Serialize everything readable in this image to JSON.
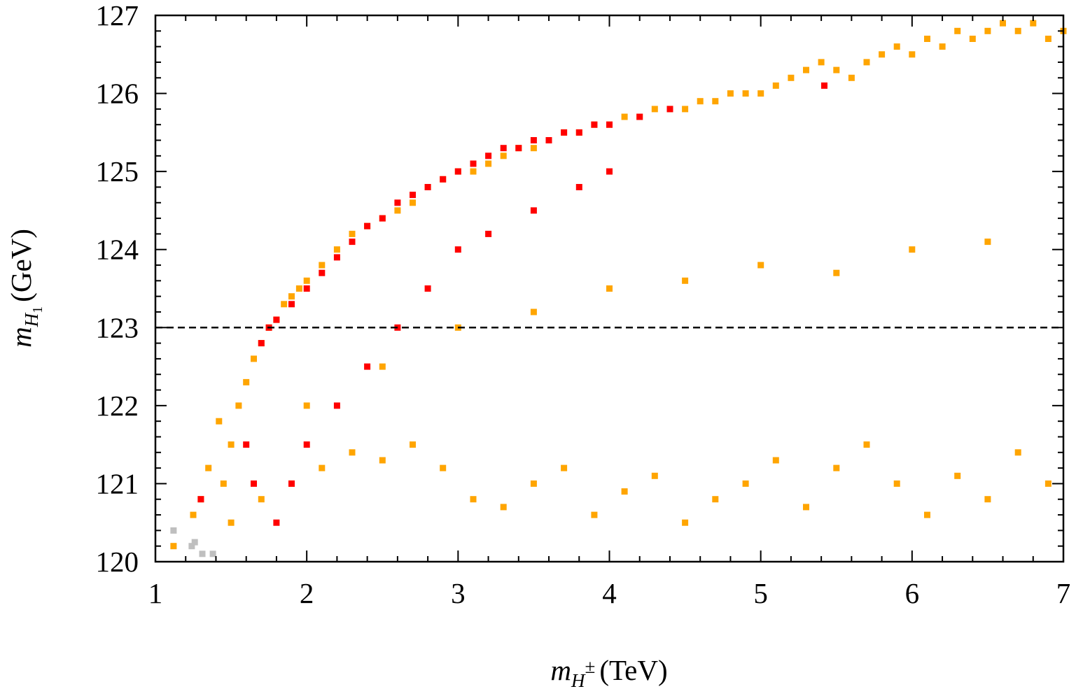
{
  "chart_data": {
    "type": "scatter",
    "xlabel": {
      "symbol": "m",
      "sub": "H",
      "sup": "±",
      "unit": "(TeV)"
    },
    "ylabel": {
      "symbol": "m",
      "sub": "H",
      "subsub": "1",
      "unit": "(GeV)"
    },
    "xlim": [
      1,
      7
    ],
    "ylim": [
      120,
      127
    ],
    "xticks": [
      "1",
      "2",
      "3",
      "4",
      "5",
      "6",
      "7"
    ],
    "yticks": [
      "120",
      "121",
      "122",
      "123",
      "124",
      "125",
      "126",
      "127"
    ],
    "reference_line": {
      "y": 123,
      "style": "dashed",
      "color": "#000000"
    },
    "grid": false,
    "legend": "none",
    "series": [
      {
        "color": "#bfbfbf",
        "x": [
          1.12,
          1.24,
          1.26,
          1.31,
          1.38
        ],
        "y": [
          120.4,
          120.2,
          120.25,
          120.1,
          120.1
        ]
      },
      {
        "color": "#ffa500",
        "x": [
          1.12,
          1.25,
          1.3,
          1.35,
          1.42,
          1.45,
          1.5,
          1.55,
          1.6,
          1.65,
          1.7,
          1.75,
          1.8,
          1.85,
          1.9,
          1.95,
          2.0,
          2.1,
          2.2,
          2.3,
          2.4,
          2.5,
          2.6,
          2.7,
          2.8,
          2.9,
          3.0,
          3.1,
          3.2,
          3.3,
          3.4,
          3.5,
          3.6,
          3.7,
          3.8,
          3.9,
          4.0,
          4.1,
          4.2,
          4.3,
          4.4,
          4.5,
          4.6,
          4.7,
          4.8,
          4.9,
          5.0,
          5.1,
          5.2,
          5.3,
          5.4,
          5.5,
          5.6,
          5.7,
          5.8,
          5.9,
          6.0,
          6.1,
          6.2,
          6.3,
          6.4,
          6.5,
          6.6,
          6.7,
          6.8,
          6.9,
          7.0,
          1.5,
          1.7,
          1.9,
          2.1,
          2.3,
          2.5,
          2.7,
          2.9,
          3.1,
          3.3,
          3.5,
          3.7,
          3.9,
          4.1,
          4.3,
          4.5,
          4.7,
          4.9,
          5.1,
          5.3,
          5.5,
          5.7,
          5.9,
          6.1,
          6.3,
          6.5,
          6.7,
          6.9,
          2.0,
          2.5,
          3.0,
          3.5,
          4.0,
          4.5,
          5.0,
          5.5,
          6.0,
          6.5
        ],
        "y": [
          120.2,
          120.6,
          120.8,
          121.2,
          121.8,
          121.0,
          121.5,
          122.0,
          122.3,
          122.6,
          122.8,
          123.0,
          123.1,
          123.3,
          123.4,
          123.5,
          123.6,
          123.8,
          124.0,
          124.2,
          124.3,
          124.4,
          124.5,
          124.6,
          124.8,
          124.9,
          125.0,
          125.0,
          125.1,
          125.2,
          125.3,
          125.3,
          125.4,
          125.5,
          125.5,
          125.6,
          125.6,
          125.7,
          125.7,
          125.8,
          125.8,
          125.8,
          125.9,
          125.9,
          126.0,
          126.0,
          126.0,
          126.1,
          126.2,
          126.3,
          126.4,
          126.3,
          126.2,
          126.4,
          126.5,
          126.6,
          126.5,
          126.7,
          126.6,
          126.8,
          126.7,
          126.8,
          126.9,
          126.8,
          126.9,
          126.7,
          126.8,
          120.5,
          120.8,
          121.0,
          121.2,
          121.4,
          121.3,
          121.5,
          121.2,
          120.8,
          120.7,
          121.0,
          121.2,
          120.6,
          120.9,
          121.1,
          120.5,
          120.8,
          121.0,
          121.3,
          120.7,
          121.2,
          121.5,
          121.0,
          120.6,
          121.1,
          120.8,
          121.4,
          121.0,
          122.0,
          122.5,
          123.0,
          123.2,
          123.5,
          123.6,
          123.8,
          123.7,
          124.0,
          124.1
        ]
      },
      {
        "color": "#ff0000",
        "x": [
          1.3,
          1.6,
          1.65,
          1.7,
          1.75,
          1.8,
          1.9,
          2.0,
          2.1,
          2.2,
          2.3,
          2.4,
          2.5,
          2.6,
          2.7,
          2.8,
          2.9,
          3.0,
          3.1,
          3.2,
          3.3,
          3.4,
          3.5,
          3.6,
          3.7,
          3.8,
          3.9,
          4.0,
          4.2,
          4.4,
          5.42,
          1.8,
          1.9,
          2.0,
          2.2,
          2.4,
          2.6,
          2.8,
          3.0,
          3.2,
          3.5,
          3.8,
          4.0
        ],
        "y": [
          120.8,
          121.5,
          121.0,
          122.8,
          123.0,
          123.1,
          123.3,
          123.5,
          123.7,
          123.9,
          124.1,
          124.3,
          124.4,
          124.6,
          124.7,
          124.8,
          124.9,
          125.0,
          125.1,
          125.2,
          125.3,
          125.3,
          125.4,
          125.4,
          125.5,
          125.5,
          125.6,
          125.6,
          125.7,
          125.8,
          126.1,
          120.5,
          121.0,
          121.5,
          122.0,
          122.5,
          123.0,
          123.5,
          124.0,
          124.2,
          124.5,
          124.8,
          125.0
        ]
      }
    ]
  }
}
